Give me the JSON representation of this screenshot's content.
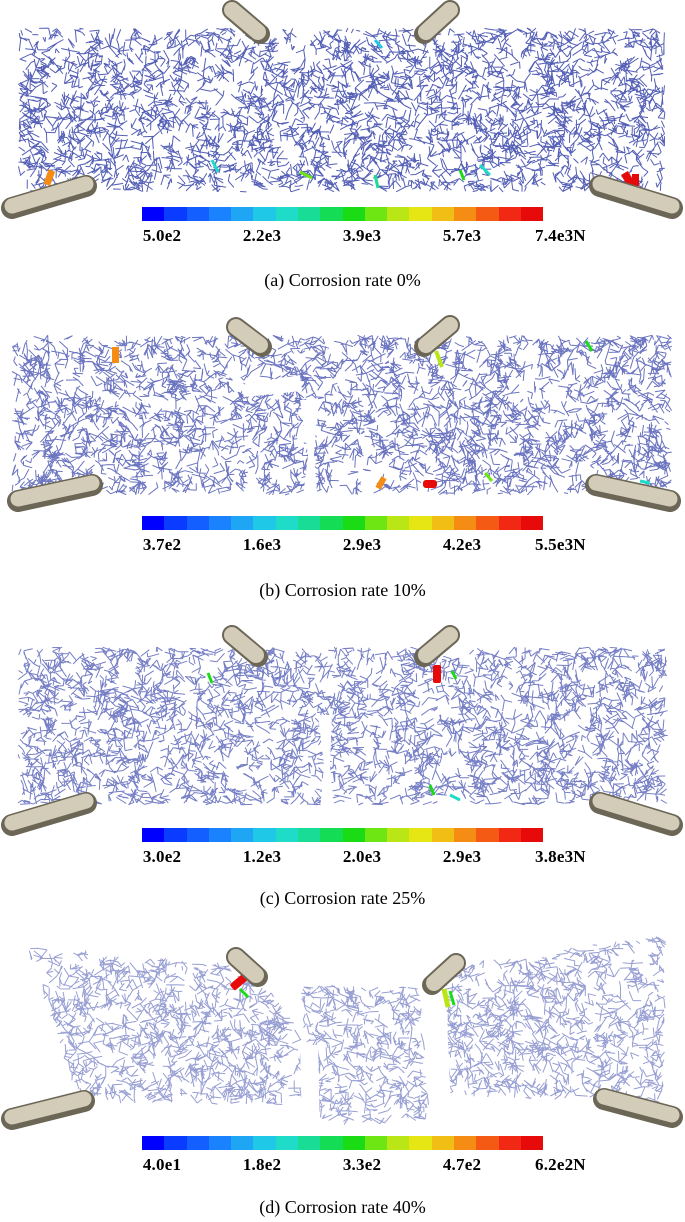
{
  "colorbar_colors": [
    "#0000ff",
    "#0a3cff",
    "#145fff",
    "#1b82ff",
    "#1ea6f5",
    "#1fc8e6",
    "#1edcc8",
    "#19dc96",
    "#14dc55",
    "#19dc14",
    "#6ee614",
    "#b9e614",
    "#e6e614",
    "#f0be14",
    "#f58c14",
    "#f55a14",
    "#f02814",
    "#e60a0a"
  ],
  "beam_color": "#1b2a9e",
  "support_color": "#d3ccb8",
  "panels": [
    {
      "caption": "(a) Corrosion rate 0%",
      "ticks": [
        "5.0e2",
        "2.2e3",
        "3.9e3",
        "5.7e3",
        "7.4e3N"
      ],
      "corrosion_rate_percent": 0
    },
    {
      "caption": "(b) Corrosion rate 10%",
      "ticks": [
        "3.7e2",
        "1.6e3",
        "2.9e3",
        "4.2e3",
        "5.5e3N"
      ],
      "corrosion_rate_percent": 10
    },
    {
      "caption": "(c) Corrosion rate 25%",
      "ticks": [
        "3.0e2",
        "1.2e3",
        "2.0e3",
        "2.9e3",
        "3.8e3N"
      ],
      "corrosion_rate_percent": 25
    },
    {
      "caption": "(d) Corrosion rate 40%",
      "ticks": [
        "4.0e1",
        "1.8e2",
        "3.3e2",
        "4.7e2",
        "6.2e2N"
      ],
      "corrosion_rate_percent": 40
    }
  ]
}
